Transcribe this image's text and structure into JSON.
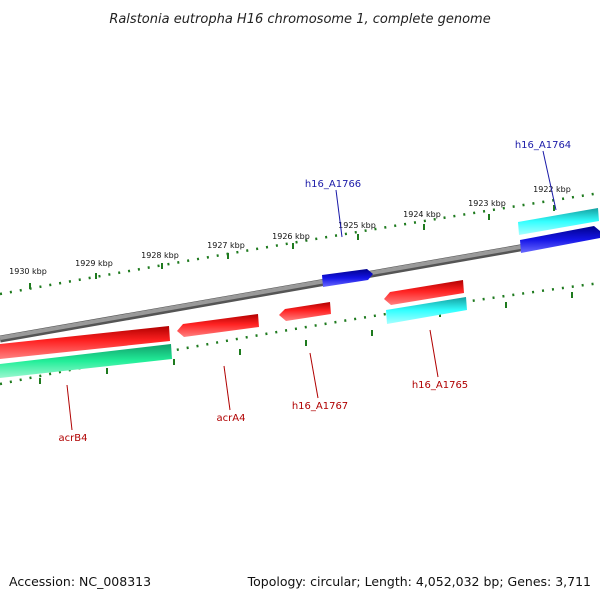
{
  "title": "Ralstonia eutropha H16 chromosome 1, complete genome",
  "footer": {
    "accession": "Accession: NC_008313",
    "summary": "Topology: circular; Length: 4,052,032 bp; Genes: 3,711"
  },
  "scale_labels": [
    "1930 kbp",
    "1929 kbp",
    "1928 kbp",
    "1927 kbp",
    "1926 kbp",
    "1925 kbp",
    "1924 kbp",
    "1923 kbp",
    "1922 kbp"
  ],
  "gene_labels": {
    "h16_A1764": "h16_A1764",
    "h16_A1766": "h16_A1766",
    "h16_A1765": "h16_A1765",
    "h16_A1767": "h16_A1767",
    "acrA4": "acrA4",
    "acrB4": "acrB4"
  },
  "colors": {
    "backbone": "#7f7f7f",
    "ticks": "#1e7a1e",
    "cds_red": "#ee1111",
    "cds_blue": "#1010dd",
    "cds_cyan": "#22dddd",
    "cds_teal": "#22dd99"
  }
}
